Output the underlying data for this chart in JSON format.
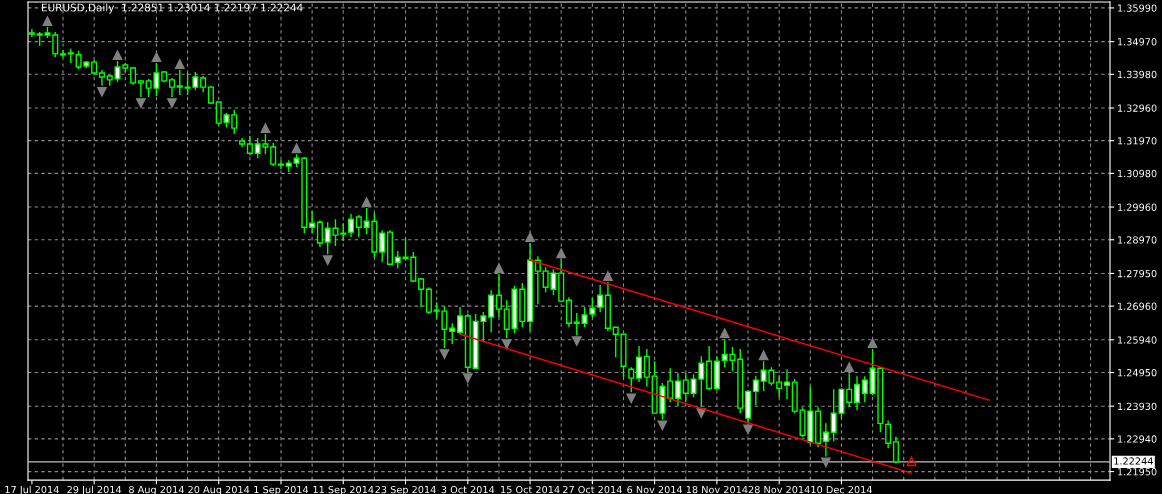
{
  "chart_data": {
    "type": "candlestick",
    "title": "EURUSD,Daily  1.22851 1.23014 1.22197 1.22244",
    "categories": [
      "17 Jul 2014",
      null,
      null,
      null,
      null,
      null,
      null,
      null,
      "29 Jul 2014",
      null,
      null,
      null,
      null,
      null,
      null,
      null,
      "8 Aug 2014",
      null,
      null,
      null,
      null,
      null,
      null,
      null,
      "20 Aug 2014",
      null,
      null,
      null,
      null,
      null,
      null,
      null,
      "1 Sep 2014",
      null,
      null,
      null,
      null,
      null,
      null,
      null,
      "11 Sep 2014",
      null,
      null,
      null,
      null,
      null,
      null,
      null,
      "23 Sep 2014",
      null,
      null,
      null,
      null,
      null,
      null,
      null,
      "3 Oct 2014",
      null,
      null,
      null,
      null,
      null,
      null,
      null,
      "15 Oct 2014",
      null,
      null,
      null,
      null,
      null,
      null,
      null,
      "27 Oct 2014",
      null,
      null,
      null,
      null,
      null,
      null,
      null,
      "6 Nov 2014",
      null,
      null,
      null,
      null,
      null,
      null,
      null,
      "18 Nov 2014",
      null,
      null,
      null,
      null,
      null,
      null,
      null,
      "28 Nov 2014",
      null,
      null,
      null,
      null,
      null,
      null,
      null,
      "10 Dec 2014",
      null,
      null,
      null,
      null,
      null,
      null,
      null,
      null,
      null,
      null,
      null,
      null,
      null,
      null,
      null,
      null,
      null,
      null,
      null,
      null,
      null,
      null,
      null,
      null,
      null,
      null,
      null,
      null,
      null,
      null,
      null,
      null,
      null,
      null
    ],
    "color": "#00ff00",
    "ohlc": [
      [
        1.352,
        1.3535,
        1.3511,
        1.3523
      ],
      [
        1.352,
        1.3526,
        1.3484,
        1.3517
      ],
      [
        1.3517,
        1.3541,
        1.3508,
        1.3523
      ],
      [
        1.3517,
        1.3526,
        1.345,
        1.346
      ],
      [
        1.346,
        1.3472,
        1.345,
        1.3457
      ],
      [
        1.3463,
        1.3475,
        1.3432,
        1.346
      ],
      [
        1.3457,
        1.3469,
        1.3414,
        1.342
      ],
      [
        1.3423,
        1.3438,
        1.3417,
        1.3435
      ],
      [
        1.3435,
        1.3441,
        1.3396,
        1.3402
      ],
      [
        1.3402,
        1.3411,
        1.3363,
        1.339
      ],
      [
        1.3393,
        1.3396,
        1.3363,
        1.3381
      ],
      [
        1.3384,
        1.3438,
        1.3375,
        1.342
      ],
      [
        1.3426,
        1.3432,
        1.3405,
        1.3417
      ],
      [
        1.3417,
        1.342,
        1.3366,
        1.3372
      ],
      [
        1.3378,
        1.3381,
        1.3329,
        1.3372
      ],
      [
        1.3378,
        1.3384,
        1.3329,
        1.3356
      ],
      [
        1.3356,
        1.3432,
        1.3332,
        1.3402
      ],
      [
        1.3405,
        1.3408,
        1.3375,
        1.3378
      ],
      [
        1.3381,
        1.3387,
        1.3329,
        1.3359
      ],
      [
        1.3363,
        1.3411,
        1.3335,
        1.3359
      ],
      [
        1.3359,
        1.3402,
        1.3335,
        1.3356
      ],
      [
        1.3359,
        1.3405,
        1.335,
        1.339
      ],
      [
        1.3387,
        1.3393,
        1.3344,
        1.3359
      ],
      [
        1.3359,
        1.3363,
        1.3308,
        1.3311
      ],
      [
        1.3314,
        1.3314,
        1.3244,
        1.325
      ],
      [
        1.3253,
        1.3281,
        1.3238,
        1.3275
      ],
      [
        1.3275,
        1.329,
        1.3217,
        1.3235
      ],
      [
        1.3196,
        1.3205,
        1.3178,
        1.3187
      ],
      [
        1.3187,
        1.3211,
        1.3153,
        1.3159
      ],
      [
        1.3159,
        1.3205,
        1.3144,
        1.3187
      ],
      [
        1.3187,
        1.3217,
        1.3156,
        1.3178
      ],
      [
        1.3178,
        1.319,
        1.312,
        1.3126
      ],
      [
        1.3126,
        1.3138,
        1.3111,
        1.3123
      ],
      [
        1.312,
        1.3138,
        1.3102,
        1.3129
      ],
      [
        1.3129,
        1.3156,
        1.3117,
        1.3144
      ],
      [
        1.3144,
        1.3147,
        1.2917,
        1.2935
      ],
      [
        1.2935,
        1.2984,
        1.2917,
        1.2947
      ],
      [
        1.295,
        1.2956,
        1.2875,
        1.2887
      ],
      [
        1.289,
        1.295,
        1.2853,
        1.2932
      ],
      [
        1.2932,
        1.2959,
        1.2878,
        1.2911
      ],
      [
        1.2917,
        1.2947,
        1.2893,
        1.2914
      ],
      [
        1.292,
        1.2975,
        1.2905,
        1.2959
      ],
      [
        1.2966,
        1.2972,
        1.2905,
        1.2935
      ],
      [
        1.2935,
        1.2993,
        1.2914,
        1.2953
      ],
      [
        1.2953,
        1.2978,
        1.2844,
        1.286
      ],
      [
        1.286,
        1.2926,
        1.2829,
        1.2917
      ],
      [
        1.292,
        1.2926,
        1.282,
        1.2823
      ],
      [
        1.2829,
        1.2863,
        1.2811,
        1.2844
      ],
      [
        1.2844,
        1.2902,
        1.2835,
        1.2841
      ],
      [
        1.2844,
        1.286,
        1.2769,
        1.2772
      ],
      [
        1.2778,
        1.2781,
        1.2693,
        1.2747
      ],
      [
        1.2747,
        1.2753,
        1.2672,
        1.2678
      ],
      [
        1.2681,
        1.2708,
        1.2659,
        1.2684
      ],
      [
        1.2681,
        1.2696,
        1.2569,
        1.2626
      ],
      [
        1.262,
        1.2644,
        1.2581,
        1.2629
      ],
      [
        1.2617,
        1.2693,
        1.2611,
        1.2666
      ],
      [
        1.2666,
        1.2672,
        1.2496,
        1.2511
      ],
      [
        1.2508,
        1.2672,
        1.2508,
        1.265
      ],
      [
        1.265,
        1.2678,
        1.2587,
        1.2666
      ],
      [
        1.2663,
        1.2744,
        1.2617,
        1.2729
      ],
      [
        1.2729,
        1.2793,
        1.2663,
        1.2687
      ],
      [
        1.2687,
        1.2714,
        1.2599,
        1.2626
      ],
      [
        1.2629,
        1.2757,
        1.2614,
        1.2747
      ],
      [
        1.2747,
        1.2766,
        1.2632,
        1.265
      ],
      [
        1.265,
        1.2887,
        1.262,
        1.2835
      ],
      [
        1.2835,
        1.2847,
        1.2702,
        1.2802
      ],
      [
        1.2802,
        1.2814,
        1.2738,
        1.2753
      ],
      [
        1.2747,
        1.2808,
        1.2729,
        1.2796
      ],
      [
        1.2796,
        1.2838,
        1.2708,
        1.2711
      ],
      [
        1.2714,
        1.2723,
        1.2632,
        1.2644
      ],
      [
        1.2647,
        1.2675,
        1.2608,
        1.2644
      ],
      [
        1.2644,
        1.2693,
        1.2632,
        1.2669
      ],
      [
        1.2672,
        1.272,
        1.2663,
        1.269
      ],
      [
        1.2693,
        1.276,
        1.2678,
        1.2729
      ],
      [
        1.2729,
        1.2769,
        1.262,
        1.2629
      ],
      [
        1.2632,
        1.2632,
        1.2541,
        1.2611
      ],
      [
        1.2611,
        1.2611,
        1.2481,
        1.2514
      ],
      [
        1.2505,
        1.2511,
        1.2435,
        1.2478
      ],
      [
        1.2478,
        1.2575,
        1.2466,
        1.2541
      ],
      [
        1.2544,
        1.2566,
        1.2453,
        1.2481
      ],
      [
        1.2484,
        1.2529,
        1.2369,
        1.2372
      ],
      [
        1.2372,
        1.2463,
        1.2353,
        1.2453
      ],
      [
        1.2469,
        1.2508,
        1.2405,
        1.2417
      ],
      [
        1.2417,
        1.2493,
        1.2393,
        1.2469
      ],
      [
        1.2472,
        1.2493,
        1.2405,
        1.2432
      ],
      [
        1.2432,
        1.249,
        1.242,
        1.2475
      ],
      [
        1.2475,
        1.2544,
        1.239,
        1.2523
      ],
      [
        1.2529,
        1.2575,
        1.2441,
        1.2447
      ],
      [
        1.2447,
        1.2544,
        1.2441,
        1.2529
      ],
      [
        1.2532,
        1.2596,
        1.2511,
        1.255
      ],
      [
        1.255,
        1.2572,
        1.2499,
        1.2532
      ],
      [
        1.2535,
        1.2566,
        1.2372,
        1.2387
      ],
      [
        1.2357,
        1.2441,
        1.2341,
        1.2438
      ],
      [
        1.2438,
        1.2484,
        1.2396,
        1.2472
      ],
      [
        1.2469,
        1.2529,
        1.2438,
        1.2502
      ],
      [
        1.2502,
        1.2511,
        1.2456,
        1.2463
      ],
      [
        1.2466,
        1.2487,
        1.242,
        1.2447
      ],
      [
        1.2456,
        1.2505,
        1.2414,
        1.2466
      ],
      [
        1.2466,
        1.2475,
        1.2372,
        1.2378
      ],
      [
        1.2381,
        1.239,
        1.2299,
        1.2305
      ],
      [
        1.2284,
        1.2453,
        1.2278,
        1.2378
      ],
      [
        1.2378,
        1.239,
        1.2269,
        1.2281
      ],
      [
        1.2287,
        1.2341,
        1.2241,
        1.2314
      ],
      [
        1.2314,
        1.2444,
        1.2287,
        1.2372
      ],
      [
        1.2372,
        1.2447,
        1.2357,
        1.2444
      ],
      [
        1.2444,
        1.2493,
        1.239,
        1.2405
      ],
      [
        1.2405,
        1.2484,
        1.2381,
        1.2459
      ],
      [
        1.2432,
        1.2484,
        1.2405,
        1.2472
      ],
      [
        1.2432,
        1.2566,
        1.2426,
        1.2508
      ],
      [
        1.2508,
        1.2511,
        1.2314,
        1.2341
      ],
      [
        1.2338,
        1.235,
        1.2266,
        1.2281
      ],
      [
        1.22851,
        1.23014,
        1.22197,
        1.22244
      ],
      null,
      null,
      null,
      null,
      null,
      null,
      null,
      null,
      null,
      null,
      null,
      null,
      null,
      null,
      null,
      null,
      null,
      null,
      null,
      null,
      null,
      null,
      null,
      null,
      null,
      null,
      null
    ],
    "series": [
      {
        "type": "scatter",
        "color": "#808080",
        "marker": "triangle",
        "values": [
          null,
          null,
          1.3559,
          null,
          null,
          null,
          null,
          null,
          null,
          null,
          null,
          1.3456,
          null,
          null,
          null,
          null,
          1.345,
          null,
          null,
          1.3429,
          null,
          null,
          null,
          null,
          null,
          null,
          null,
          null,
          null,
          null,
          1.3235,
          null,
          null,
          null,
          1.3174,
          null,
          null,
          null,
          null,
          null,
          null,
          null,
          null,
          1.3011,
          null,
          null,
          null,
          null,
          null,
          null,
          null,
          null,
          null,
          null,
          null,
          null,
          null,
          null,
          null,
          null,
          1.2811,
          null,
          null,
          null,
          1.2905,
          null,
          null,
          null,
          1.2856,
          null,
          null,
          null,
          null,
          null,
          1.2787,
          null,
          null,
          null,
          null,
          null,
          null,
          null,
          null,
          null,
          null,
          null,
          null,
          null,
          null,
          1.2614,
          null,
          null,
          null,
          null,
          1.2547,
          null,
          null,
          null,
          null,
          null,
          null,
          null,
          null,
          null,
          null,
          1.2511,
          null,
          null,
          1.2584,
          null,
          null,
          null,
          null,
          null,
          null,
          null,
          null,
          null,
          null,
          null,
          null,
          null,
          null,
          null,
          null,
          null,
          null,
          null,
          null,
          null,
          null,
          null,
          null,
          null,
          null,
          null,
          null,
          null,
          null
        ]
      },
      {
        "type": "scatter",
        "color": "#808080",
        "marker": "triangle",
        "values": [
          null,
          null,
          null,
          null,
          null,
          null,
          null,
          null,
          null,
          1.3345,
          null,
          null,
          null,
          null,
          1.3311,
          null,
          null,
          null,
          1.3311,
          null,
          null,
          null,
          null,
          null,
          null,
          null,
          null,
          null,
          null,
          null,
          null,
          null,
          null,
          null,
          null,
          null,
          null,
          null,
          1.2835,
          null,
          null,
          null,
          null,
          null,
          null,
          null,
          null,
          null,
          null,
          null,
          null,
          null,
          null,
          1.2551,
          null,
          null,
          1.2478,
          null,
          null,
          null,
          null,
          1.2581,
          null,
          null,
          null,
          null,
          null,
          null,
          null,
          null,
          1.259,
          null,
          null,
          null,
          null,
          null,
          null,
          1.2417,
          null,
          null,
          null,
          1.2335,
          null,
          null,
          null,
          null,
          1.2372,
          null,
          null,
          null,
          null,
          null,
          1.2323,
          null,
          null,
          null,
          null,
          null,
          null,
          null,
          null,
          null,
          1.2223,
          null,
          null,
          null,
          null,
          null,
          null,
          null,
          null,
          null,
          null,
          null,
          null,
          null,
          null,
          null,
          null,
          null,
          null,
          null,
          null,
          null,
          null,
          null,
          null,
          null,
          null,
          null,
          null,
          null,
          null,
          null,
          null,
          null,
          null,
          null,
          null
        ]
      },
      {
        "type": "scatter",
        "color": "#ff0000",
        "marker": "triangle",
        "values": [
          null,
          null,
          null,
          null,
          null,
          null,
          null,
          null,
          null,
          null,
          null,
          null,
          null,
          null,
          null,
          null,
          null,
          null,
          null,
          null,
          null,
          null,
          null,
          null,
          null,
          null,
          null,
          null,
          null,
          null,
          null,
          null,
          null,
          null,
          null,
          null,
          null,
          null,
          null,
          null,
          null,
          null,
          null,
          null,
          null,
          null,
          null,
          null,
          null,
          null,
          null,
          null,
          null,
          null,
          null,
          null,
          null,
          null,
          null,
          null,
          null,
          null,
          null,
          null,
          null,
          null,
          null,
          null,
          null,
          null,
          null,
          null,
          null,
          null,
          null,
          null,
          null,
          null,
          null,
          null,
          null,
          null,
          null,
          null,
          null,
          null,
          null,
          null,
          null,
          null,
          null,
          null,
          null,
          null,
          null,
          null,
          null,
          null,
          null,
          null,
          null,
          null,
          null,
          null,
          null,
          null,
          null,
          null,
          null,
          null,
          null,
          null,
          null,
          1.2226,
          null,
          null,
          null,
          null,
          null,
          null,
          null,
          null,
          null,
          null,
          null,
          null,
          null,
          null,
          null,
          null,
          null,
          null,
          null,
          null,
          null,
          null,
          null,
          null,
          null
        ]
      },
      {
        "type": "line",
        "color": "#ff0000",
        "values": [
          null,
          null,
          null,
          null,
          null,
          null,
          null,
          null,
          null,
          null,
          null,
          null,
          null,
          null,
          null,
          null,
          null,
          null,
          null,
          null,
          null,
          null,
          null,
          null,
          null,
          null,
          null,
          null,
          null,
          null,
          null,
          null,
          null,
          null,
          null,
          null,
          null,
          null,
          null,
          null,
          null,
          null,
          null,
          null,
          null,
          null,
          null,
          null,
          null,
          null,
          null,
          null,
          null,
          null,
          null,
          null,
          null,
          null,
          null,
          null,
          null,
          null,
          null,
          null,
          1.2835,
          null,
          null,
          null,
          null,
          null,
          null,
          null,
          null,
          null,
          null,
          null,
          null,
          null,
          null,
          null,
          null,
          null,
          null,
          null,
          null,
          null,
          null,
          null,
          null,
          null,
          null,
          null,
          null,
          null,
          null,
          null,
          null,
          null,
          null,
          null,
          null,
          null,
          null,
          null,
          null,
          null,
          null,
          null,
          null,
          null,
          null,
          null,
          null,
          null,
          null,
          null,
          null,
          null,
          null,
          null,
          null,
          null,
          null,
          1.2411,
          null,
          null,
          null,
          null,
          null,
          null,
          null,
          null,
          null,
          null,
          null,
          null,
          null,
          null,
          null
        ]
      },
      {
        "type": "line",
        "color": "#ff0000",
        "values": [
          null,
          null,
          null,
          null,
          null,
          null,
          null,
          null,
          null,
          null,
          null,
          null,
          null,
          null,
          null,
          null,
          null,
          null,
          null,
          null,
          null,
          null,
          null,
          null,
          null,
          null,
          null,
          null,
          null,
          null,
          null,
          null,
          null,
          null,
          null,
          null,
          null,
          null,
          null,
          null,
          null,
          null,
          null,
          null,
          null,
          null,
          null,
          null,
          null,
          null,
          null,
          null,
          null,
          null,
          null,
          1.2611,
          null,
          null,
          null,
          null,
          null,
          null,
          null,
          null,
          null,
          null,
          null,
          null,
          null,
          null,
          null,
          null,
          null,
          null,
          null,
          null,
          null,
          null,
          null,
          null,
          null,
          null,
          null,
          null,
          null,
          null,
          null,
          null,
          null,
          null,
          null,
          null,
          null,
          null,
          null,
          null,
          null,
          null,
          null,
          null,
          null,
          null,
          null,
          null,
          null,
          null,
          null,
          null,
          null,
          null,
          null,
          null,
          null,
          1.219,
          null,
          null,
          null,
          null,
          null,
          null,
          null,
          null,
          null,
          null,
          null,
          null,
          null,
          null,
          null,
          null,
          null,
          null,
          null,
          null,
          null,
          null,
          null,
          null,
          null
        ]
      }
    ],
    "ref_lines": [
      {
        "axis": "y",
        "value": 1.22244,
        "label": "1.22244",
        "color": "#c0c0c0"
      }
    ],
    "ylim": [
      1.2169,
      1.3617
    ],
    "yticks": [
      {
        "value": 1.3599,
        "label": "1.35990"
      },
      {
        "value": 1.3497,
        "label": "1.34970"
      },
      {
        "value": 1.3398,
        "label": "1.33980"
      },
      {
        "value": 1.3296,
        "label": "1.32960"
      },
      {
        "value": 1.3197,
        "label": "1.31970"
      },
      {
        "value": 1.3098,
        "label": "1.30980"
      },
      {
        "value": 1.2996,
        "label": "1.29960"
      },
      {
        "value": 1.2897,
        "label": "1.28970"
      },
      {
        "value": 1.2795,
        "label": "1.27950"
      },
      {
        "value": 1.2696,
        "label": "1.26960"
      },
      {
        "value": 1.2594,
        "label": "1.25940"
      },
      {
        "value": 1.2495,
        "label": "1.24950"
      },
      {
        "value": 1.2393,
        "label": "1.23930"
      },
      {
        "value": 1.2294,
        "label": "1.22940"
      },
      {
        "value": 1.2195,
        "label": "1.21950"
      }
    ],
    "grid": true
  }
}
